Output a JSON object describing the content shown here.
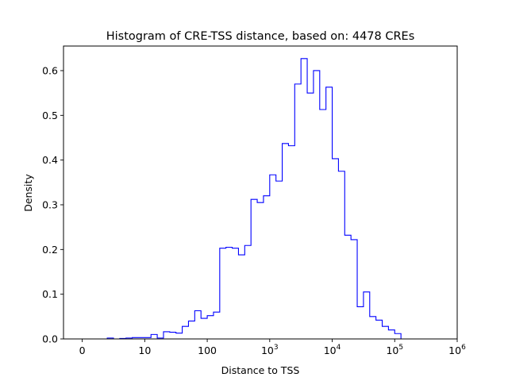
{
  "chart_data": {
    "type": "histogram",
    "title": "Histogram of CRE-TSS distance, based on: 4478 CREs",
    "xlabel": "Distance to TSS",
    "ylabel": "Density",
    "x_scale": "symlog",
    "xlim": [
      -0.3,
      6.0
    ],
    "ylim": [
      0,
      0.655
    ],
    "x_ticks": [
      {
        "pos": 0,
        "base": "0",
        "exp": ""
      },
      {
        "pos": 1,
        "base": "10",
        "exp": ""
      },
      {
        "pos": 2,
        "base": "100",
        "exp": ""
      },
      {
        "pos": 3,
        "base": "10",
        "exp": "3"
      },
      {
        "pos": 4,
        "base": "10",
        "exp": "4"
      },
      {
        "pos": 5,
        "base": "10",
        "exp": "5"
      },
      {
        "pos": 6,
        "base": "10",
        "exp": "6"
      }
    ],
    "y_ticks": [
      "0.0",
      "0.1",
      "0.2",
      "0.3",
      "0.4",
      "0.5",
      "0.6"
    ],
    "bin_start": 0,
    "bin_width": 0.1,
    "densities": [
      0,
      0,
      0,
      0,
      0.002,
      0,
      0.001,
      0.002,
      0.003,
      0.003,
      0.003,
      0.01,
      0.002,
      0.016,
      0.015,
      0.013,
      0.028,
      0.04,
      0.063,
      0.046,
      0.052,
      0.06,
      0.203,
      0.205,
      0.203,
      0.188,
      0.209,
      0.312,
      0.305,
      0.32,
      0.367,
      0.353,
      0.437,
      0.432,
      0.57,
      0.627,
      0.55,
      0.6,
      0.513,
      0.563,
      0.403,
      0.375,
      0.232,
      0.222,
      0.072,
      0.105,
      0.05,
      0.042,
      0.028,
      0.02,
      0.012,
      0,
      0,
      0,
      0,
      0,
      0,
      0,
      0,
      0
    ],
    "series": [
      {
        "color": "#0000ff"
      }
    ]
  }
}
